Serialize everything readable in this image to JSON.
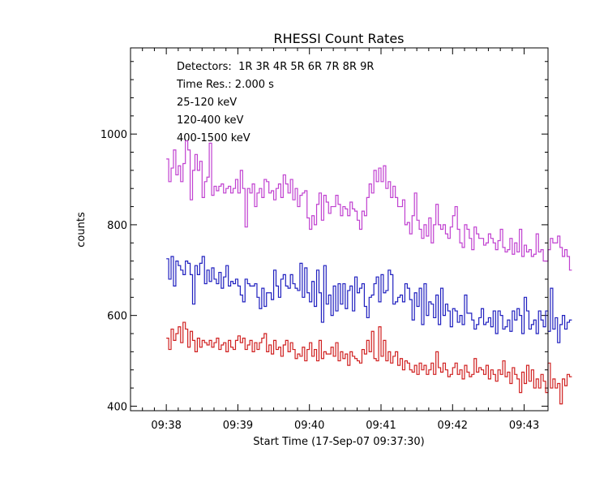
{
  "chart_data": {
    "type": "line",
    "title": "RHESSI Count Rates",
    "xlabel": "Start Time (17-Sep-07 09:37:30)",
    "ylabel": "counts",
    "xlim": [
      "09:37:30",
      "09:43:20"
    ],
    "ylim": [
      390,
      1190
    ],
    "x_ticks": [
      "09:38",
      "09:39",
      "09:40",
      "09:41",
      "09:42",
      "09:43"
    ],
    "y_ticks": [
      400,
      600,
      800,
      1000
    ],
    "grid": false,
    "legend_position": "top-left",
    "annotations": [
      {
        "text": "Detectors:  1R 3R 4R 5R 6R 7R 8R 9R"
      },
      {
        "text": "Time Res.: 2.000 s"
      }
    ],
    "x_start": "09:38:00",
    "x_step_s": 2,
    "series": [
      {
        "name": "25-120 keV",
        "color": "#1f1fbf",
        "values": [
          725,
          680,
          730,
          665,
          720,
          710,
          700,
          690,
          720,
          715,
          690,
          625,
          710,
          690,
          715,
          730,
          670,
          700,
          675,
          705,
          680,
          670,
          695,
          660,
          685,
          710,
          665,
          675,
          670,
          680,
          665,
          645,
          630,
          680,
          670,
          665,
          665,
          670,
          640,
          615,
          660,
          620,
          650,
          650,
          635,
          700,
          665,
          640,
          680,
          690,
          665,
          660,
          690,
          670,
          660,
          655,
          715,
          640,
          705,
          650,
          630,
          675,
          620,
          700,
          650,
          585,
          710,
          625,
          645,
          600,
          665,
          610,
          670,
          625,
          670,
          615,
          655,
          665,
          610,
          685,
          650,
          660,
          670,
          620,
          595,
          640,
          645,
          670,
          685,
          630,
          690,
          650,
          655,
          700,
          690,
          625,
          630,
          640,
          645,
          630,
          670,
          660,
          635,
          590,
          650,
          620,
          660,
          580,
          670,
          600,
          630,
          625,
          595,
          645,
          580,
          660,
          600,
          625,
          610,
          575,
          615,
          610,
          585,
          600,
          580,
          645,
          605,
          605,
          590,
          570,
          580,
          595,
          615,
          580,
          585,
          595,
          575,
          610,
          560,
          610,
          600,
          570,
          575,
          590,
          565,
          610,
          590,
          615,
          600,
          560,
          640,
          610,
          570,
          580,
          590,
          560,
          610,
          590,
          575,
          610,
          565,
          660,
          570,
          595,
          540,
          580,
          600,
          570,
          585,
          590
        ]
      },
      {
        "name": "120-400 keV",
        "color": "#c040d0",
        "values": [
          945,
          895,
          925,
          965,
          910,
          930,
          895,
          935,
          985,
          965,
          855,
          920,
          955,
          920,
          940,
          860,
          895,
          905,
          980,
          865,
          885,
          875,
          885,
          890,
          870,
          880,
          885,
          870,
          880,
          900,
          870,
          920,
          880,
          795,
          880,
          870,
          890,
          840,
          870,
          880,
          860,
          900,
          895,
          870,
          875,
          855,
          880,
          890,
          860,
          910,
          890,
          870,
          900,
          855,
          880,
          840,
          865,
          870,
          875,
          815,
          790,
          820,
          800,
          845,
          870,
          810,
          865,
          850,
          825,
          840,
          840,
          865,
          845,
          820,
          840,
          835,
          820,
          850,
          835,
          830,
          810,
          790,
          830,
          820,
          860,
          890,
          870,
          920,
          895,
          925,
          895,
          930,
          880,
          895,
          860,
          885,
          860,
          840,
          840,
          855,
          800,
          805,
          780,
          820,
          870,
          810,
          790,
          770,
          800,
          775,
          815,
          760,
          800,
          845,
          800,
          790,
          800,
          780,
          770,
          795,
          820,
          840,
          790,
          760,
          750,
          800,
          790,
          770,
          745,
          795,
          780,
          770,
          770,
          755,
          760,
          780,
          770,
          760,
          745,
          765,
          790,
          750,
          740,
          745,
          770,
          735,
          760,
          740,
          790,
          730,
          755,
          740,
          745,
          730,
          735,
          780,
          740,
          745,
          720,
          720,
          745,
          770,
          760,
          760,
          775,
          750,
          730,
          745,
          730,
          700
        ]
      },
      {
        "name": "400-1500 keV",
        "color": "#d02020",
        "values": [
          550,
          525,
          570,
          545,
          560,
          575,
          540,
          585,
          570,
          530,
          565,
          545,
          520,
          550,
          530,
          545,
          540,
          535,
          545,
          530,
          540,
          550,
          525,
          535,
          540,
          520,
          545,
          530,
          525,
          545,
          555,
          540,
          550,
          525,
          535,
          545,
          520,
          540,
          525,
          540,
          550,
          560,
          520,
          535,
          515,
          545,
          525,
          530,
          510,
          535,
          545,
          520,
          540,
          525,
          505,
          515,
          510,
          530,
          500,
          525,
          540,
          510,
          525,
          500,
          545,
          505,
          520,
          515,
          515,
          530,
          510,
          540,
          500,
          520,
          505,
          515,
          490,
          520,
          510,
          505,
          500,
          495,
          525,
          515,
          545,
          520,
          565,
          505,
          500,
          575,
          510,
          545,
          500,
          520,
          495,
          510,
          520,
          490,
          505,
          480,
          500,
          495,
          480,
          475,
          490,
          470,
          495,
          480,
          490,
          470,
          480,
          495,
          470,
          520,
          485,
          475,
          495,
          480,
          465,
          470,
          485,
          495,
          470,
          480,
          460,
          490,
          475,
          465,
          470,
          505,
          475,
          485,
          480,
          470,
          490,
          460,
          480,
          470,
          455,
          480,
          470,
          500,
          465,
          475,
          450,
          485,
          470,
          460,
          430,
          475,
          450,
          490,
          455,
          480,
          440,
          460,
          440,
          470,
          455,
          430,
          495,
          440,
          460,
          440,
          450,
          405,
          460,
          445,
          470,
          465
        ]
      }
    ]
  }
}
